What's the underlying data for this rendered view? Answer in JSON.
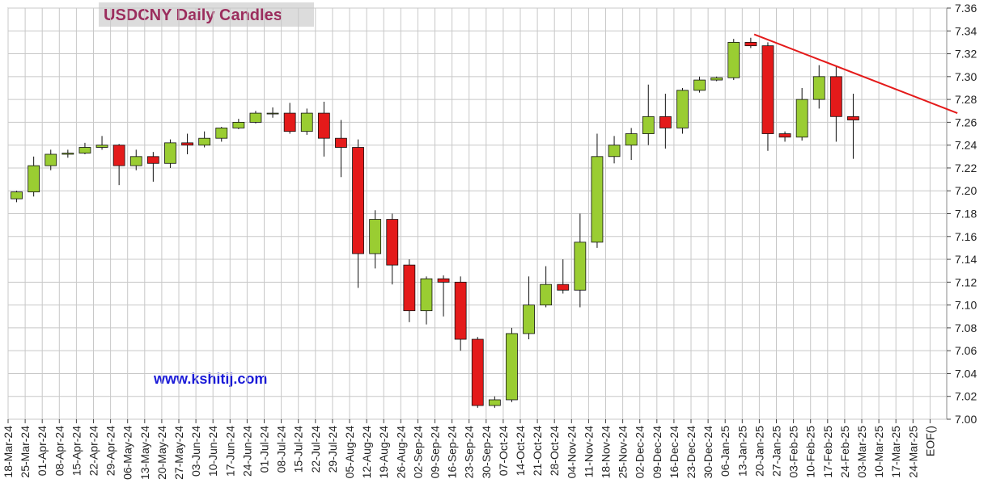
{
  "chart_data": {
    "type": "candlestick",
    "title": "USDCNY Daily Candles",
    "annotation": "www.kshitij.com",
    "categories": [
      "18-Mar-24",
      "25-Mar-24",
      "01-Apr-24",
      "08-Apr-24",
      "15-Apr-24",
      "22-Apr-24",
      "29-Apr-24",
      "06-May-24",
      "13-May-24",
      "20-May-24",
      "27-May-24",
      "03-Jun-24",
      "10-Jun-24",
      "17-Jun-24",
      "24-Jun-24",
      "01-Jul-24",
      "08-Jul-24",
      "15-Jul-24",
      "22-Jul-24",
      "29-Jul-24",
      "05-Aug-24",
      "12-Aug-24",
      "19-Aug-24",
      "26-Aug-24",
      "02-Sep-24",
      "09-Sep-24",
      "16-Sep-24",
      "23-Sep-24",
      "30-Sep-24",
      "07-Oct-24",
      "14-Oct-24",
      "21-Oct-24",
      "28-Oct-24",
      "04-Nov-24",
      "11-Nov-24",
      "18-Nov-24",
      "25-Nov-24",
      "02-Dec-24",
      "09-Dec-24",
      "16-Dec-24",
      "23-Dec-24",
      "30-Dec-24",
      "06-Jan-25",
      "13-Jan-25",
      "20-Jan-25",
      "27-Jan-25",
      "03-Feb-25",
      "10-Feb-25",
      "17-Feb-25",
      "24-Feb-25",
      "03-Mar-25",
      "10-Mar-25",
      "17-Mar-25",
      "24-Mar-25",
      "EOF()"
    ],
    "open": [
      7.193,
      7.199,
      7.222,
      7.232,
      7.233,
      7.238,
      7.24,
      7.222,
      7.23,
      7.224,
      7.242,
      7.24,
      7.246,
      7.255,
      7.26,
      7.268,
      7.268,
      7.252,
      7.268,
      7.246,
      7.238,
      7.145,
      7.175,
      7.135,
      7.095,
      7.123,
      7.12,
      7.07,
      7.012,
      7.017,
      7.075,
      7.1,
      7.118,
      7.113,
      7.155,
      7.23,
      7.24,
      7.25,
      7.265,
      7.255,
      7.288,
      7.297,
      7.299,
      7.33,
      7.327,
      7.25,
      7.247,
      7.28,
      7.3,
      7.265,
      null,
      null,
      null,
      null,
      null
    ],
    "high": [
      7.2,
      7.23,
      7.236,
      7.236,
      7.242,
      7.248,
      7.241,
      7.236,
      7.234,
      7.245,
      7.25,
      7.252,
      7.256,
      7.263,
      7.27,
      7.273,
      7.277,
      7.272,
      7.278,
      7.262,
      7.245,
      7.183,
      7.18,
      7.14,
      7.125,
      7.126,
      7.125,
      7.072,
      7.02,
      7.08,
      7.125,
      7.134,
      7.14,
      7.18,
      7.25,
      7.248,
      7.255,
      7.293,
      7.285,
      7.29,
      7.3,
      7.3,
      7.333,
      7.334,
      7.33,
      7.252,
      7.29,
      7.31,
      7.309,
      7.285,
      null,
      null,
      null,
      null,
      null
    ],
    "low": [
      7.19,
      7.195,
      7.218,
      7.229,
      7.232,
      7.236,
      7.205,
      7.218,
      7.208,
      7.22,
      7.232,
      7.238,
      7.243,
      7.254,
      7.259,
      7.264,
      7.25,
      7.249,
      7.23,
      7.212,
      7.115,
      7.132,
      7.118,
      7.085,
      7.083,
      7.09,
      7.06,
      7.01,
      7.01,
      7.015,
      7.07,
      7.098,
      7.11,
      7.098,
      7.15,
      7.224,
      7.227,
      7.24,
      7.237,
      7.25,
      7.286,
      7.296,
      7.297,
      7.325,
      7.235,
      7.243,
      7.244,
      7.272,
      7.243,
      7.228,
      null,
      null,
      null,
      null,
      null
    ],
    "close": [
      7.199,
      7.222,
      7.232,
      7.233,
      7.238,
      7.24,
      7.222,
      7.23,
      7.224,
      7.242,
      7.24,
      7.246,
      7.255,
      7.26,
      7.268,
      7.268,
      7.252,
      7.268,
      7.246,
      7.238,
      7.145,
      7.175,
      7.135,
      7.095,
      7.123,
      7.12,
      7.07,
      7.012,
      7.017,
      7.075,
      7.1,
      7.118,
      7.113,
      7.155,
      7.23,
      7.24,
      7.25,
      7.265,
      7.255,
      7.288,
      7.297,
      7.299,
      7.33,
      7.327,
      7.25,
      7.247,
      7.28,
      7.3,
      7.265,
      7.262,
      null,
      null,
      null,
      null,
      null
    ],
    "up_color": "#9acd32",
    "down_color": "#e41a1a",
    "trend_line": {
      "color": "#e41a1a",
      "x": [
        43.7,
        55.6
      ],
      "y": [
        7.337,
        7.268
      ]
    },
    "ylim": [
      7.0,
      7.36
    ],
    "yticks": [
      {
        "value": 7.0,
        "label": "7.00"
      },
      7.02,
      7.04,
      7.06,
      7.08,
      {
        "value": 7.1,
        "label": "7.10"
      },
      7.12,
      7.14,
      7.16,
      7.18,
      {
        "value": 7.2,
        "label": "7.20"
      },
      7.22,
      7.24,
      7.26,
      7.28,
      {
        "value": 7.3,
        "label": "7.30"
      },
      7.32,
      7.34,
      7.36
    ],
    "grid": true
  }
}
